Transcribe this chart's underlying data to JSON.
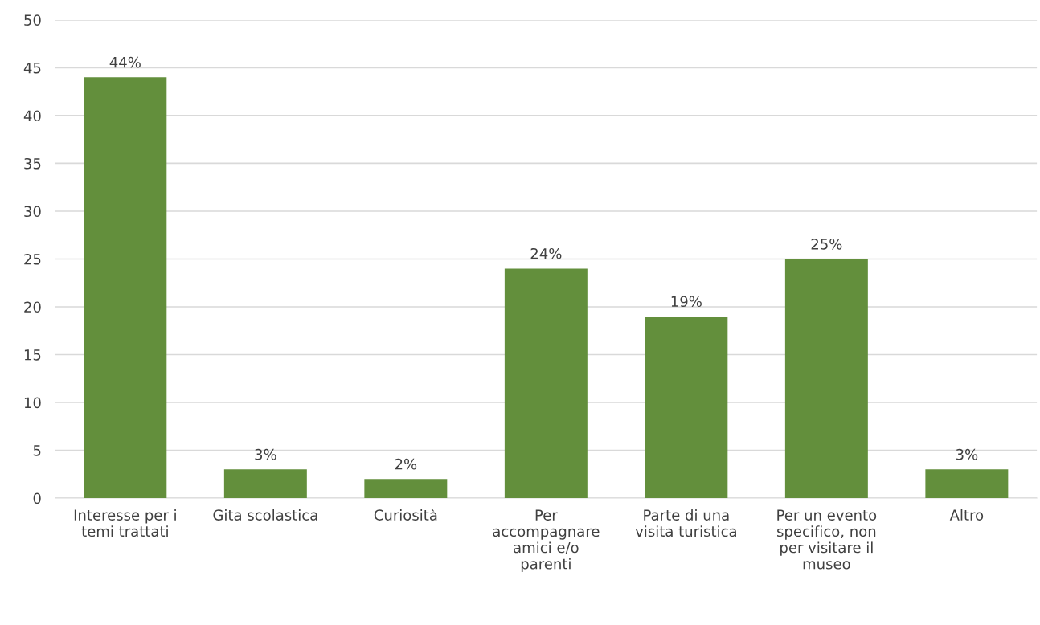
{
  "chart_data": {
    "type": "bar",
    "categories": [
      "Interesse per i\ntemi trattati",
      "Gita scolastica",
      "Curiosità",
      "Per\naccompagnare\namici e/o\nparenti",
      "Parte di una\nvisita turistica",
      "Per un evento\nspecifico, non\nper visitare il\nmuseo",
      "Altro"
    ],
    "values": [
      44,
      3,
      2,
      24,
      19,
      25,
      3
    ],
    "value_labels": [
      "44%",
      "3%",
      "2%",
      "24%",
      "19%",
      "25%",
      "3%"
    ],
    "color": "#638f3c",
    "ylim": [
      0,
      50
    ],
    "yticks": [
      0,
      5,
      10,
      15,
      20,
      25,
      30,
      35,
      40,
      45,
      50
    ],
    "grid": "y",
    "legend": false
  }
}
